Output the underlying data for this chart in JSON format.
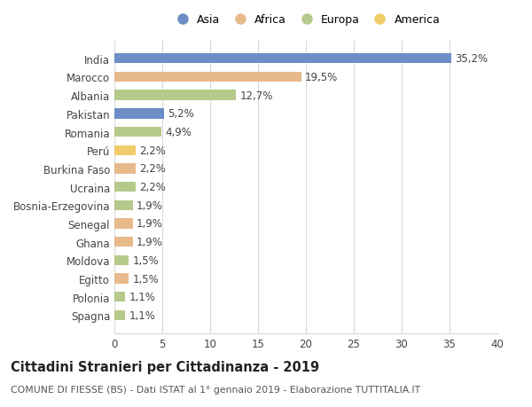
{
  "countries": [
    "India",
    "Marocco",
    "Albania",
    "Pakistan",
    "Romania",
    "Perú",
    "Burkina Faso",
    "Ucraina",
    "Bosnia-Erzegovina",
    "Senegal",
    "Ghana",
    "Moldova",
    "Egitto",
    "Polonia",
    "Spagna"
  ],
  "values": [
    35.2,
    19.5,
    12.7,
    5.2,
    4.9,
    2.2,
    2.2,
    2.2,
    1.9,
    1.9,
    1.9,
    1.5,
    1.5,
    1.1,
    1.1
  ],
  "continents": [
    "Asia",
    "Africa",
    "Europa",
    "Asia",
    "Europa",
    "America",
    "Africa",
    "Europa",
    "Europa",
    "Africa",
    "Africa",
    "Europa",
    "Africa",
    "Europa",
    "Europa"
  ],
  "continent_colors": {
    "Asia": "#6b8ec6",
    "Africa": "#e8b98a",
    "Europa": "#b5c98a",
    "America": "#f0cc6a"
  },
  "legend_order": [
    "Asia",
    "Africa",
    "Europa",
    "America"
  ],
  "title": "Cittadini Stranieri per Cittadinanza - 2019",
  "subtitle": "COMUNE DI FIESSE (BS) - Dati ISTAT al 1° gennaio 2019 - Elaborazione TUTTITALIA.IT",
  "xlim": [
    0,
    40
  ],
  "xticks": [
    0,
    5,
    10,
    15,
    20,
    25,
    30,
    35,
    40
  ],
  "bar_height": 0.55,
  "background_color": "#ffffff",
  "grid_color": "#d8d8d8",
  "tick_label_fontsize": 8.5,
  "value_label_fontsize": 8.5,
  "legend_fontsize": 9,
  "title_fontsize": 10.5,
  "subtitle_fontsize": 7.8
}
